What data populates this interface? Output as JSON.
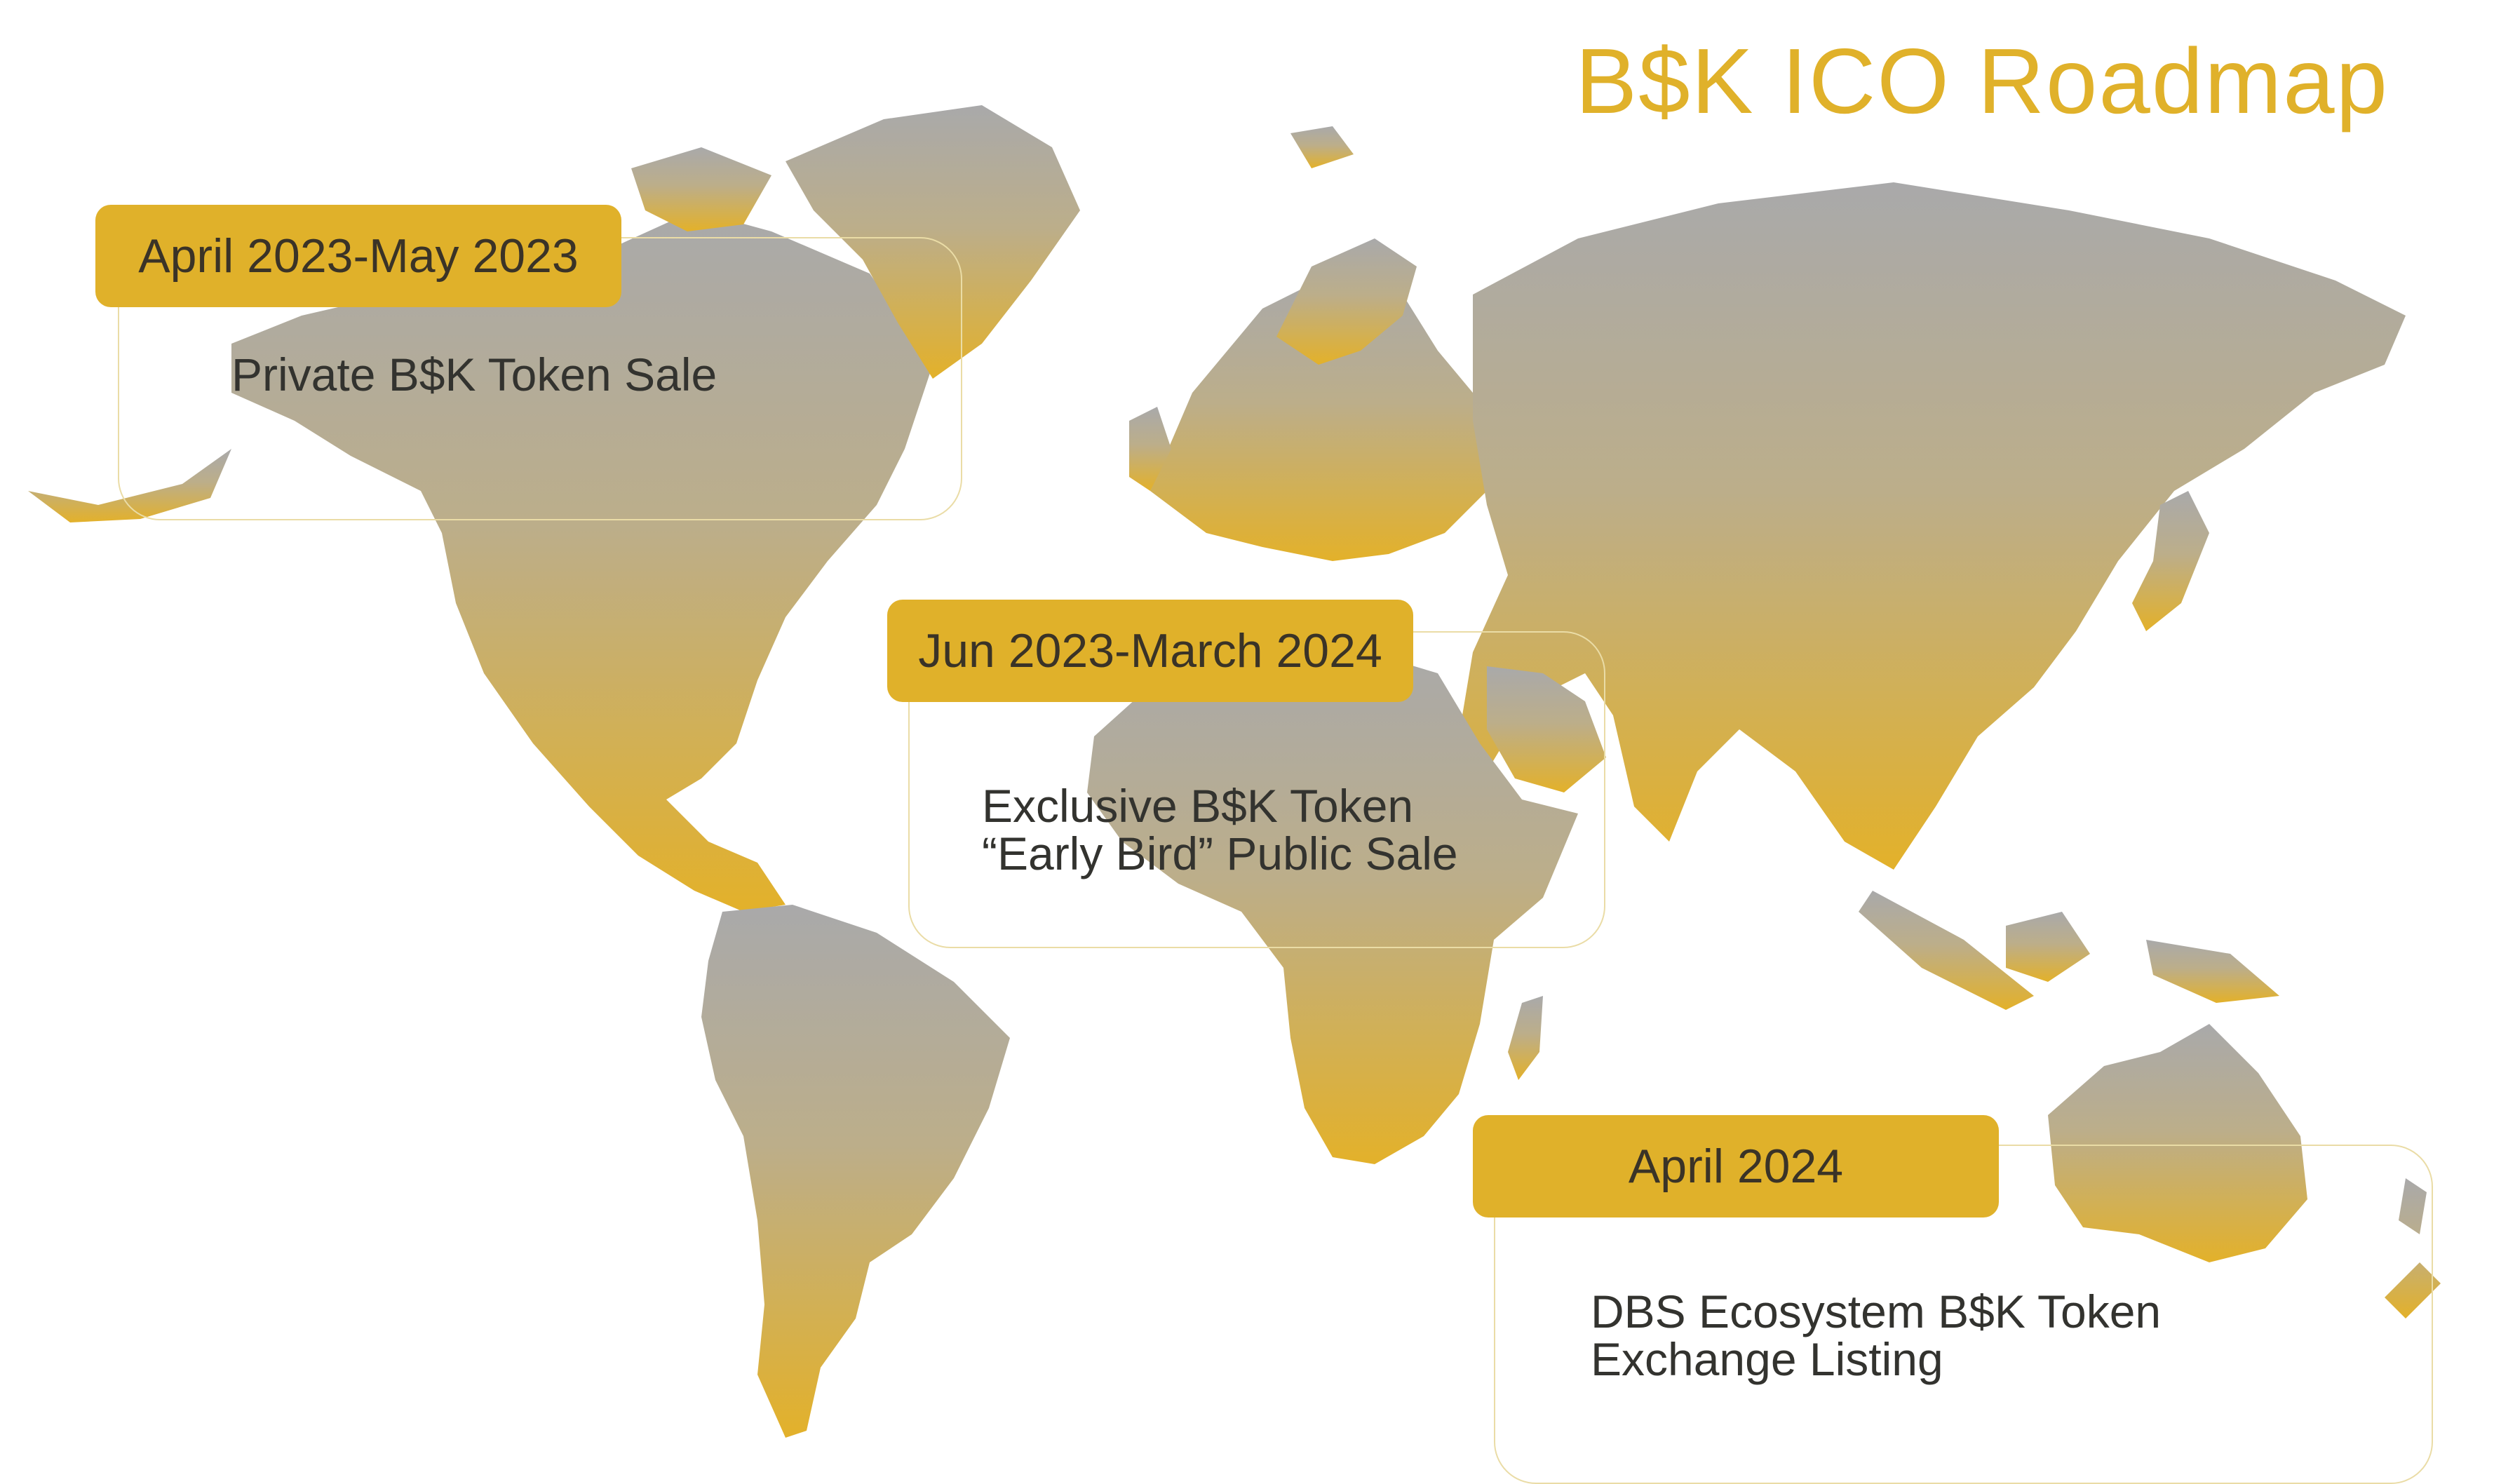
{
  "title": "B$K ICO Roadmap",
  "colors": {
    "accent": "#e0b12a",
    "map_top": "#aaaaaa",
    "map_bottom": "#e3b12a",
    "text": "#33332f",
    "card_border": "#eadca6"
  },
  "milestones": [
    {
      "date": "April 2023-May 2023",
      "description": "Private B$K Token Sale"
    },
    {
      "date": "Jun 2023-March 2024",
      "description": "Exclusive B$K Token\n“Early Bird” Public Sale"
    },
    {
      "date": "April 2024",
      "description": "DBS Ecosystem B$K Token\nExchange Listing"
    }
  ]
}
